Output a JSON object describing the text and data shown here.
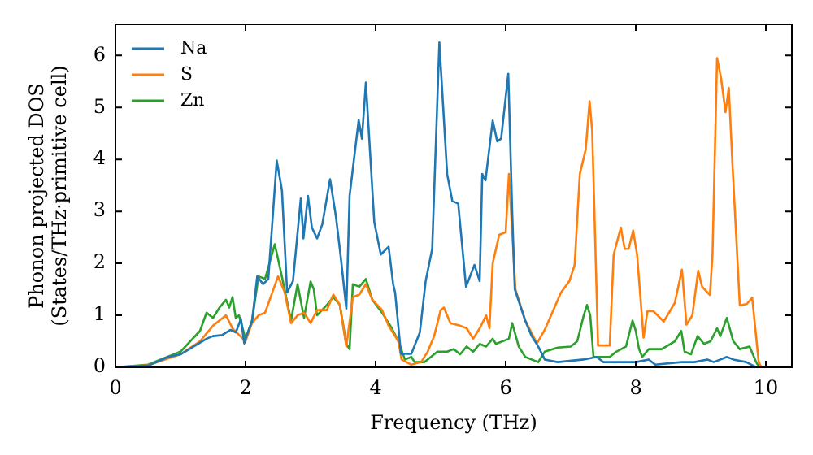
{
  "chart_data": {
    "type": "line",
    "xlabel": "Frequency (THz)",
    "ylabel": "Phonon projected DOS\n(States/THz·primitive cell)",
    "xlim": [
      0,
      10.4
    ],
    "ylim": [
      0,
      6.6
    ],
    "xticks": [
      0,
      2,
      4,
      6,
      8,
      10
    ],
    "yticks": [
      0,
      1,
      2,
      3,
      4,
      5,
      6
    ],
    "legend": "top left",
    "grid": false,
    "marker": "none",
    "line_style": "solid",
    "series": [
      {
        "name": "Na",
        "color": "#1f77b4",
        "x": [
          0,
          0.5,
          0.81,
          1.0,
          1.23,
          1.4,
          1.5,
          1.64,
          1.77,
          1.85,
          1.93,
          1.98,
          2.02,
          2.1,
          2.18,
          2.27,
          2.35,
          2.48,
          2.56,
          2.64,
          2.73,
          2.85,
          2.89,
          2.96,
          3.02,
          3.1,
          3.18,
          3.3,
          3.39,
          3.46,
          3.55,
          3.6,
          3.74,
          3.79,
          3.85,
          3.98,
          4.08,
          4.2,
          4.27,
          4.3,
          4.39,
          4.55,
          4.68,
          4.77,
          4.87,
          4.98,
          5.1,
          5.18,
          5.27,
          5.39,
          5.52,
          5.6,
          5.64,
          5.69,
          5.8,
          5.87,
          5.93,
          6.04,
          6.1,
          6.14,
          6.3,
          6.4,
          6.5,
          6.6,
          6.8,
          7.2,
          7.4,
          7.5,
          8.0,
          8.2,
          8.3,
          8.7,
          8.9,
          9.1,
          9.2,
          9.4,
          9.5,
          9.7,
          9.85
        ],
        "values": [
          0,
          0.03,
          0.2,
          0.25,
          0.42,
          0.55,
          0.6,
          0.62,
          0.72,
          0.67,
          0.93,
          0.46,
          0.62,
          0.88,
          1.75,
          1.6,
          1.7,
          3.98,
          3.41,
          1.44,
          1.66,
          3.25,
          2.48,
          3.3,
          2.69,
          2.48,
          2.75,
          3.62,
          2.9,
          2.17,
          1.13,
          3.3,
          4.76,
          4.4,
          5.48,
          2.79,
          2.17,
          2.32,
          1.6,
          1.44,
          0.26,
          0.26,
          0.67,
          1.66,
          2.28,
          6.25,
          3.72,
          3.2,
          3.15,
          1.55,
          1.97,
          1.66,
          3.72,
          3.6,
          4.75,
          4.35,
          4.4,
          5.65,
          3.0,
          1.5,
          0.9,
          0.6,
          0.4,
          0.15,
          0.1,
          0.15,
          0.2,
          0.1,
          0.1,
          0.15,
          0.05,
          0.1,
          0.1,
          0.15,
          0.1,
          0.2,
          0.15,
          0.1,
          0
        ]
      },
      {
        "name": "S",
        "color": "#ff7f0e",
        "x": [
          0,
          0.5,
          1.0,
          1.3,
          1.5,
          1.7,
          1.8,
          2.0,
          2.1,
          2.2,
          2.3,
          2.5,
          2.6,
          2.7,
          2.8,
          2.9,
          3.0,
          3.1,
          3.25,
          3.35,
          3.45,
          3.55,
          3.65,
          3.75,
          3.85,
          3.95,
          4.1,
          4.2,
          4.35,
          4.4,
          4.55,
          4.7,
          4.8,
          4.9,
          5.0,
          5.05,
          5.15,
          5.3,
          5.4,
          5.5,
          5.6,
          5.7,
          5.75,
          5.8,
          5.9,
          6.0,
          6.05,
          6.15,
          6.3,
          6.48,
          6.6,
          6.85,
          6.98,
          7.06,
          7.14,
          7.23,
          7.29,
          7.33,
          7.42,
          7.6,
          7.66,
          7.77,
          7.83,
          7.89,
          7.96,
          8.02,
          8.12,
          8.18,
          8.27,
          8.43,
          8.6,
          8.71,
          8.78,
          8.87,
          8.96,
          9.02,
          9.14,
          9.18,
          9.25,
          9.31,
          9.38,
          9.43,
          9.49,
          9.6,
          9.71,
          9.79,
          9.89,
          9.93
        ],
        "values": [
          0,
          0.04,
          0.25,
          0.5,
          0.8,
          1.0,
          0.75,
          0.5,
          0.85,
          1.0,
          1.05,
          1.75,
          1.45,
          0.85,
          1.0,
          1.05,
          0.85,
          1.1,
          1.1,
          1.4,
          1.2,
          0.4,
          1.35,
          1.4,
          1.6,
          1.3,
          1.1,
          0.8,
          0.5,
          0.15,
          0.05,
          0.1,
          0.3,
          0.6,
          1.1,
          1.15,
          0.85,
          0.8,
          0.75,
          0.55,
          0.75,
          1.0,
          0.75,
          2.0,
          2.55,
          2.6,
          3.72,
          1.5,
          0.9,
          0.46,
          0.72,
          1.44,
          1.66,
          1.97,
          3.72,
          4.19,
          5.12,
          4.55,
          0.42,
          0.42,
          2.17,
          2.69,
          2.28,
          2.28,
          2.63,
          2.17,
          0.57,
          1.08,
          1.08,
          0.88,
          1.24,
          1.88,
          0.82,
          1.0,
          1.86,
          1.55,
          1.39,
          2.17,
          5.95,
          5.58,
          4.91,
          5.38,
          3.83,
          1.19,
          1.22,
          1.34,
          0.1,
          0
        ]
      },
      {
        "name": "Zn",
        "color": "#2ca02c",
        "x": [
          0,
          0.5,
          1.0,
          1.3,
          1.4,
          1.5,
          1.6,
          1.7,
          1.75,
          1.8,
          1.85,
          1.9,
          2.0,
          2.1,
          2.2,
          2.3,
          2.45,
          2.55,
          2.6,
          2.7,
          2.8,
          2.9,
          3.0,
          3.05,
          3.1,
          3.25,
          3.35,
          3.45,
          3.55,
          3.6,
          3.65,
          3.75,
          3.85,
          3.95,
          4.1,
          4.25,
          4.35,
          4.45,
          4.55,
          4.6,
          4.75,
          4.8,
          4.95,
          5.1,
          5.2,
          5.3,
          5.4,
          5.5,
          5.6,
          5.7,
          5.8,
          5.85,
          6.05,
          6.1,
          6.2,
          6.3,
          6.5,
          6.6,
          6.8,
          7.0,
          7.1,
          7.2,
          7.25,
          7.3,
          7.35,
          7.6,
          7.7,
          7.85,
          7.95,
          8.0,
          8.05,
          8.1,
          8.2,
          8.4,
          8.6,
          8.7,
          8.75,
          8.85,
          8.95,
          9.05,
          9.15,
          9.25,
          9.3,
          9.4,
          9.5,
          9.6,
          9.75,
          9.85,
          9.9
        ],
        "values": [
          0,
          0.05,
          0.3,
          0.7,
          1.05,
          0.95,
          1.15,
          1.3,
          1.15,
          1.35,
          0.95,
          1.0,
          0.55,
          0.9,
          1.75,
          1.7,
          2.37,
          1.8,
          1.5,
          0.9,
          1.6,
          0.95,
          1.65,
          1.5,
          1.0,
          1.2,
          1.35,
          1.2,
          0.45,
          0.35,
          1.6,
          1.55,
          1.7,
          1.3,
          1.05,
          0.75,
          0.5,
          0.15,
          0.2,
          0.1,
          0.1,
          0.15,
          0.3,
          0.3,
          0.35,
          0.25,
          0.4,
          0.3,
          0.45,
          0.4,
          0.55,
          0.45,
          0.55,
          0.85,
          0.4,
          0.2,
          0.1,
          0.3,
          0.38,
          0.4,
          0.5,
          1.0,
          1.2,
          1.0,
          0.2,
          0.2,
          0.3,
          0.4,
          0.9,
          0.7,
          0.35,
          0.2,
          0.35,
          0.35,
          0.5,
          0.7,
          0.3,
          0.25,
          0.6,
          0.45,
          0.5,
          0.75,
          0.6,
          0.95,
          0.5,
          0.35,
          0.4,
          0.1,
          0
        ]
      }
    ]
  }
}
